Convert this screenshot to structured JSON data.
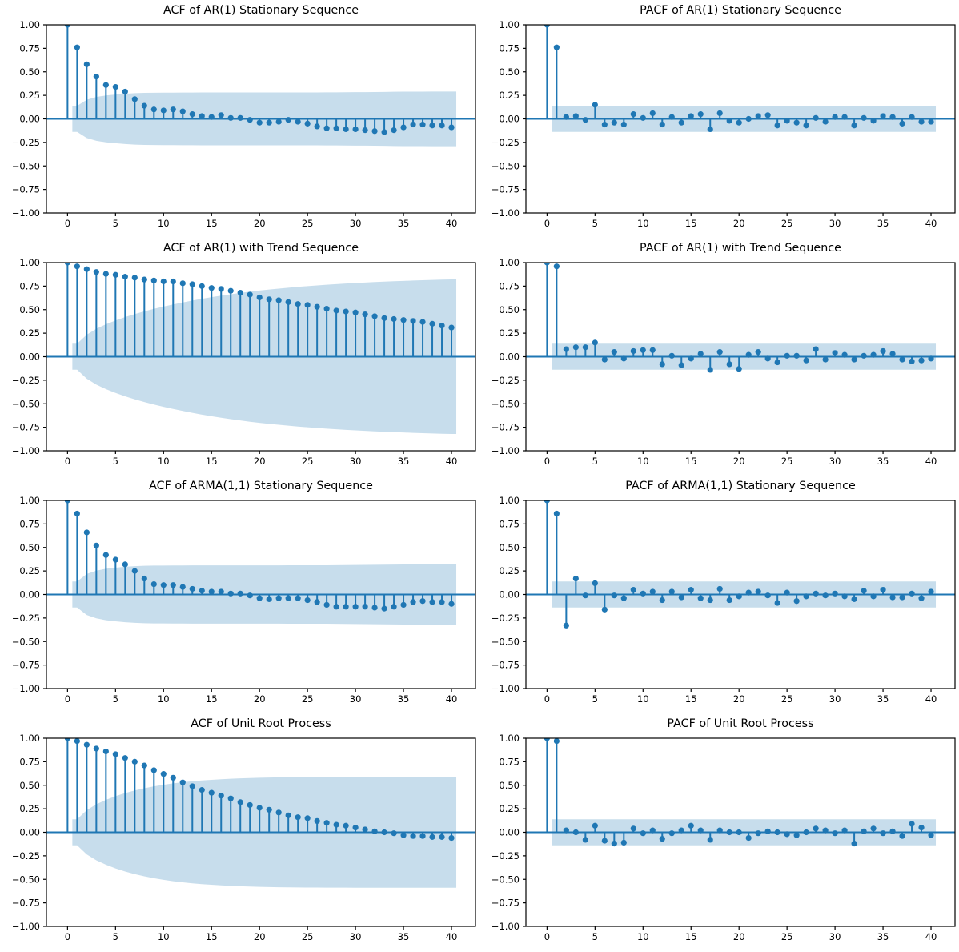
{
  "figure_title": "",
  "style": {
    "accent": "#1f77b4",
    "band_fill": "#1f77b4",
    "band_opacity": 0.25,
    "spine_color": "#000000",
    "text_color": "#000000",
    "background": "#ffffff"
  },
  "axes_common": {
    "ylim": [
      -1.0,
      1.0
    ],
    "xlim": [
      -2.2,
      42.5
    ],
    "yticks": [
      1.0,
      0.75,
      0.5,
      0.25,
      0.0,
      -0.25,
      -0.5,
      -0.75,
      -1.0
    ],
    "ytick_labels": [
      "1.00",
      "0.75",
      "0.50",
      "0.25",
      "0.00",
      "−0.25",
      "−0.50",
      "−0.75",
      "−1.00"
    ],
    "xticks": [
      0,
      5,
      10,
      15,
      20,
      25,
      30,
      35,
      40
    ],
    "xtick_labels": [
      "0",
      "5",
      "10",
      "15",
      "20",
      "25",
      "30",
      "35",
      "40"
    ],
    "grid": false,
    "legend": false
  },
  "chart_data": [
    {
      "id": "acf-ar1-stationary",
      "type": "stem",
      "title": "ACF of AR(1) Stationary Sequence",
      "conf_band": "bartlett",
      "n_obs": 200,
      "lags_from": 0,
      "values": [
        1.0,
        0.76,
        0.58,
        0.45,
        0.36,
        0.34,
        0.29,
        0.21,
        0.14,
        0.1,
        0.09,
        0.1,
        0.08,
        0.05,
        0.03,
        0.02,
        0.04,
        0.01,
        0.01,
        -0.01,
        -0.04,
        -0.04,
        -0.03,
        -0.01,
        -0.03,
        -0.05,
        -0.08,
        -0.1,
        -0.1,
        -0.11,
        -0.11,
        -0.12,
        -0.13,
        -0.14,
        -0.12,
        -0.09,
        -0.06,
        -0.06,
        -0.07,
        -0.07,
        -0.09
      ]
    },
    {
      "id": "pacf-ar1-stationary",
      "type": "stem",
      "title": "PACF of AR(1) Stationary Sequence",
      "conf_band": "constant",
      "n_obs": 200,
      "lags_from": 0,
      "values": [
        1.0,
        0.76,
        0.02,
        0.03,
        -0.01,
        0.15,
        -0.06,
        -0.04,
        -0.06,
        0.05,
        0.01,
        0.06,
        -0.06,
        0.02,
        -0.04,
        0.03,
        0.05,
        -0.11,
        0.06,
        -0.02,
        -0.04,
        0.0,
        0.03,
        0.04,
        -0.07,
        -0.02,
        -0.04,
        -0.07,
        0.01,
        -0.03,
        0.02,
        0.02,
        -0.07,
        0.01,
        -0.02,
        0.03,
        0.02,
        -0.05,
        0.02,
        -0.03,
        -0.03
      ]
    },
    {
      "id": "acf-ar1-trend",
      "type": "stem",
      "title": "ACF of AR(1) with Trend Sequence",
      "conf_band": "bartlett",
      "n_obs": 200,
      "lags_from": 0,
      "values": [
        1.0,
        0.96,
        0.93,
        0.9,
        0.88,
        0.87,
        0.85,
        0.84,
        0.82,
        0.81,
        0.8,
        0.8,
        0.78,
        0.77,
        0.75,
        0.73,
        0.72,
        0.7,
        0.68,
        0.66,
        0.63,
        0.61,
        0.6,
        0.58,
        0.56,
        0.55,
        0.53,
        0.51,
        0.49,
        0.48,
        0.47,
        0.45,
        0.43,
        0.41,
        0.4,
        0.39,
        0.38,
        0.37,
        0.35,
        0.33,
        0.31
      ]
    },
    {
      "id": "pacf-ar1-trend",
      "type": "stem",
      "title": "PACF of AR(1) with Trend Sequence",
      "conf_band": "constant",
      "n_obs": 200,
      "lags_from": 0,
      "values": [
        1.0,
        0.96,
        0.08,
        0.1,
        0.1,
        0.15,
        -0.03,
        0.05,
        -0.02,
        0.06,
        0.07,
        0.07,
        -0.08,
        0.01,
        -0.09,
        -0.02,
        0.03,
        -0.14,
        0.05,
        -0.08,
        -0.13,
        0.02,
        0.05,
        -0.02,
        -0.06,
        0.01,
        0.01,
        -0.04,
        0.08,
        -0.03,
        0.04,
        0.02,
        -0.03,
        0.01,
        0.02,
        0.06,
        0.03,
        -0.03,
        -0.05,
        -0.04,
        -0.02
      ]
    },
    {
      "id": "acf-arma11-stationary",
      "type": "stem",
      "title": "ACF of ARMA(1,1) Stationary Sequence",
      "conf_band": "bartlett",
      "n_obs": 200,
      "lags_from": 0,
      "values": [
        1.0,
        0.86,
        0.66,
        0.52,
        0.42,
        0.37,
        0.32,
        0.25,
        0.17,
        0.11,
        0.1,
        0.1,
        0.08,
        0.06,
        0.04,
        0.03,
        0.03,
        0.01,
        0.01,
        -0.01,
        -0.04,
        -0.05,
        -0.04,
        -0.04,
        -0.04,
        -0.06,
        -0.08,
        -0.11,
        -0.13,
        -0.13,
        -0.13,
        -0.13,
        -0.14,
        -0.15,
        -0.13,
        -0.11,
        -0.08,
        -0.07,
        -0.08,
        -0.08,
        -0.1
      ]
    },
    {
      "id": "pacf-arma11-stationary",
      "type": "stem",
      "title": "PACF of ARMA(1,1) Stationary Sequence",
      "conf_band": "constant",
      "n_obs": 200,
      "lags_from": 0,
      "values": [
        1.0,
        0.86,
        -0.33,
        0.17,
        -0.01,
        0.12,
        -0.16,
        -0.01,
        -0.04,
        0.05,
        0.01,
        0.03,
        -0.06,
        0.03,
        -0.03,
        0.05,
        -0.04,
        -0.06,
        0.06,
        -0.06,
        -0.02,
        0.02,
        0.03,
        -0.01,
        -0.09,
        0.02,
        -0.07,
        -0.02,
        0.01,
        -0.01,
        0.01,
        -0.02,
        -0.05,
        0.04,
        -0.02,
        0.05,
        -0.03,
        -0.03,
        0.01,
        -0.04,
        0.03
      ]
    },
    {
      "id": "acf-unit-root",
      "type": "stem",
      "title": "ACF of Unit Root Process",
      "conf_band": "bartlett",
      "n_obs": 200,
      "lags_from": 0,
      "values": [
        1.0,
        0.97,
        0.93,
        0.89,
        0.86,
        0.83,
        0.79,
        0.75,
        0.71,
        0.66,
        0.62,
        0.58,
        0.53,
        0.49,
        0.45,
        0.42,
        0.39,
        0.36,
        0.32,
        0.29,
        0.26,
        0.24,
        0.21,
        0.18,
        0.16,
        0.15,
        0.12,
        0.1,
        0.08,
        0.07,
        0.05,
        0.03,
        0.01,
        0.0,
        -0.01,
        -0.03,
        -0.04,
        -0.04,
        -0.05,
        -0.05,
        -0.06
      ]
    },
    {
      "id": "pacf-unit-root",
      "type": "stem",
      "title": "PACF of Unit Root Process",
      "conf_band": "constant",
      "n_obs": 200,
      "lags_from": 0,
      "values": [
        1.0,
        0.97,
        0.02,
        0.0,
        -0.08,
        0.07,
        -0.09,
        -0.12,
        -0.11,
        0.04,
        -0.01,
        0.02,
        -0.07,
        -0.01,
        0.02,
        0.07,
        0.02,
        -0.08,
        0.02,
        0.0,
        0.0,
        -0.06,
        -0.01,
        0.01,
        0.0,
        -0.02,
        -0.03,
        0.0,
        0.04,
        0.02,
        -0.01,
        0.02,
        -0.12,
        0.01,
        0.04,
        -0.01,
        0.01,
        -0.04,
        0.09,
        0.05,
        -0.03
      ]
    }
  ]
}
